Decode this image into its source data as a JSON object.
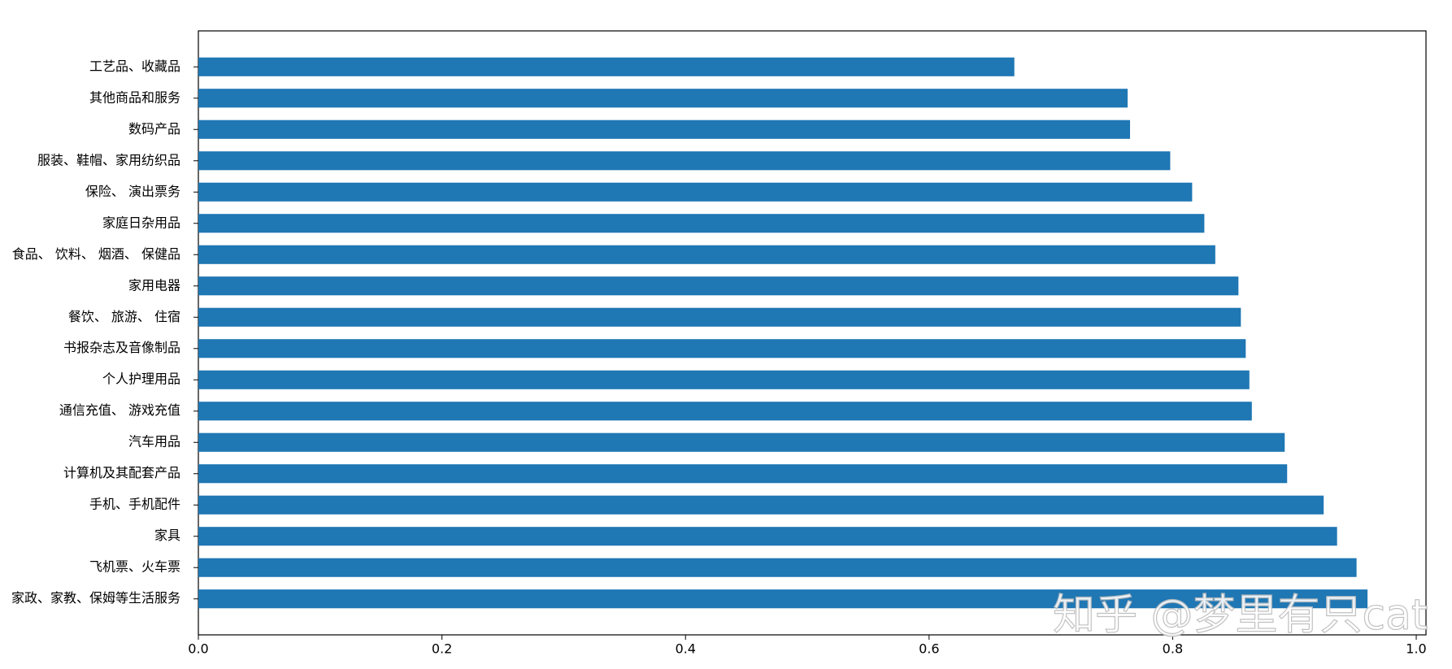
{
  "chart_data": {
    "type": "barh",
    "categories": [
      "工艺品、收藏品",
      "其他商品和服务",
      "数码产品",
      "服装、鞋帽、家用纺织品",
      "保险、 演出票务",
      "家庭日杂用品",
      "食品、 饮料、 烟酒、 保健品",
      "家用电器",
      "餐饮、 旅游、 住宿",
      "书报杂志及音像制品",
      "个人护理用品",
      "通信充值、 游戏充值",
      "汽车用品",
      "计算机及其配套产品",
      "手机、手机配件",
      "家具",
      "飞机票、火车票",
      "家政、家教、保姆等生活服务"
    ],
    "values": [
      0.67,
      0.763,
      0.765,
      0.798,
      0.816,
      0.826,
      0.835,
      0.854,
      0.856,
      0.86,
      0.863,
      0.865,
      0.892,
      0.894,
      0.924,
      0.935,
      0.951,
      0.96
    ],
    "color": "#1f77b4",
    "xlim": [
      0,
      1.008
    ],
    "xticks": [
      {
        "value": 0,
        "label": "0.0"
      },
      0.2,
      0.4,
      0.6,
      0.8,
      {
        "value": 1,
        "label": "1.0"
      }
    ],
    "watermark": "知乎 @梦里有只cat"
  }
}
